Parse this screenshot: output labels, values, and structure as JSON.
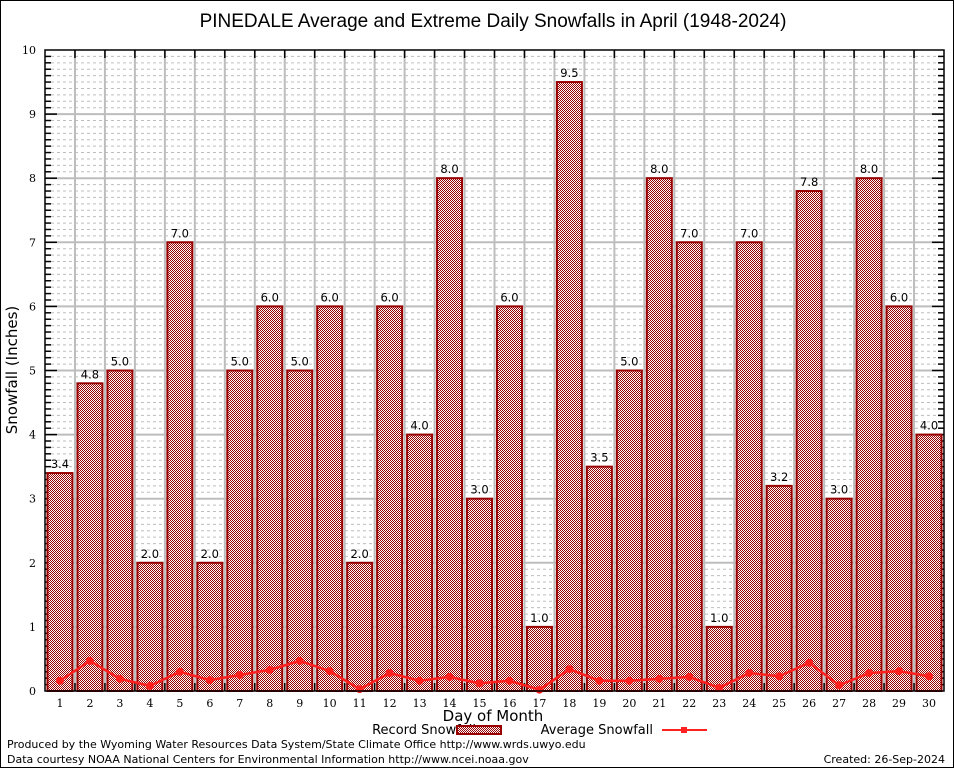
{
  "chart_data": {
    "type": "bar",
    "title": "PINEDALE Average and Extreme Daily Snowfalls in April (1948-2024)",
    "xlabel": "Day of Month",
    "ylabel": "Snowfall (Inches)",
    "ylim": [
      0,
      10
    ],
    "yticks": [
      "0",
      "1",
      "2",
      "3",
      "4",
      "5",
      "6",
      "7",
      "8",
      "9",
      "10"
    ],
    "grid": true,
    "categories": [
      "1",
      "2",
      "3",
      "4",
      "5",
      "6",
      "7",
      "8",
      "9",
      "10",
      "11",
      "12",
      "13",
      "14",
      "15",
      "16",
      "17",
      "18",
      "19",
      "20",
      "21",
      "22",
      "23",
      "24",
      "25",
      "26",
      "27",
      "28",
      "29",
      "30"
    ],
    "series": [
      {
        "name": "Record Snowfall",
        "kind": "bar",
        "color": "#990000",
        "values": [
          3.4,
          4.8,
          5.0,
          2.0,
          7.0,
          2.0,
          5.0,
          6.0,
          5.0,
          6.0,
          2.0,
          6.0,
          4.0,
          8.0,
          3.0,
          6.0,
          1.0,
          9.5,
          3.5,
          5.0,
          8.0,
          7.0,
          1.0,
          7.0,
          3.2,
          7.8,
          3.0,
          8.0,
          6.0,
          4.0
        ],
        "labels": [
          "3.4",
          "4.8",
          "5.0",
          "2.0",
          "7.0",
          "2.0",
          "5.0",
          "6.0",
          "5.0",
          "6.0",
          "2.0",
          "6.0",
          "4.0",
          "8.0",
          "3.0",
          "6.0",
          "1.0",
          "9.5",
          "3.5",
          "5.0",
          "8.0",
          "7.0",
          "1.0",
          "7.0",
          "3.2",
          "7.8",
          "3.0",
          "8.0",
          "6.0",
          "4.0"
        ]
      },
      {
        "name": "Average Snowfall",
        "kind": "line",
        "color": "#ff2020",
        "values": [
          0.16,
          0.47,
          0.19,
          0.08,
          0.3,
          0.17,
          0.25,
          0.33,
          0.47,
          0.31,
          0.03,
          0.28,
          0.16,
          0.22,
          0.12,
          0.16,
          0.02,
          0.34,
          0.16,
          0.16,
          0.19,
          0.22,
          0.05,
          0.28,
          0.23,
          0.44,
          0.09,
          0.28,
          0.31,
          0.23
        ]
      }
    ],
    "legend": {
      "placement": "bottom-center",
      "entries": [
        "Record Snowfall",
        "Average Snowfall"
      ]
    }
  },
  "footer": {
    "produced_by": "Produced by the Wyoming Water Resources Data System/State Climate Office http://www.wrds.uwyo.edu",
    "data_courtesy": "Data courtesy NOAA National Centers for Environmental Information http://www.ncei.noaa.gov",
    "created": "Created: 26-Sep-2024"
  }
}
